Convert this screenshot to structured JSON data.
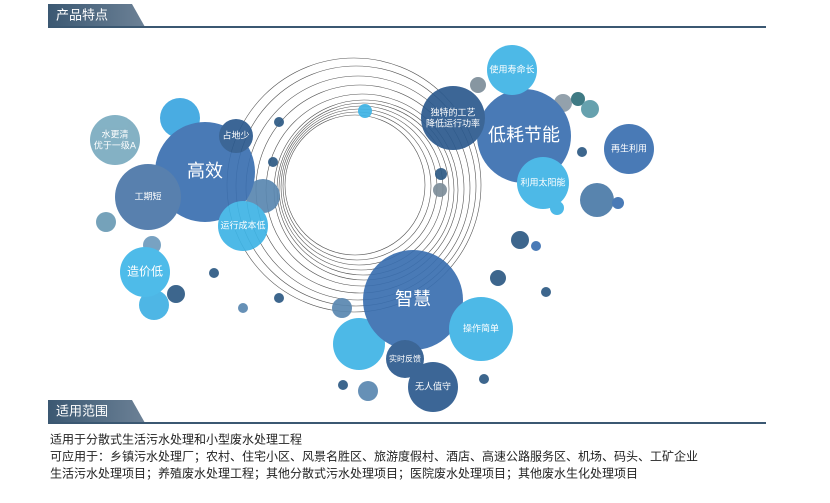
{
  "sections": [
    {
      "title": "产品特点"
    },
    {
      "title": "适用范围"
    }
  ],
  "groups": [
    {
      "main": "高效",
      "items": [
        "占地少",
        "水更清\n优于一级A",
        "工期短",
        "运行成本低",
        "造价低"
      ]
    },
    {
      "main": "低耗节能",
      "items": [
        "独特的工艺\n降低运行功率",
        "使用寿命长",
        "再生利用",
        "利用太阳能"
      ]
    },
    {
      "main": "智慧",
      "items": [
        "操作简单",
        "实时反馈",
        "无人值守"
      ]
    }
  ],
  "scope": {
    "lines": [
      "适用于分散式生活污水处理和小型废水处理工程",
      "可应用于：乡镇污水处理厂；农村、住宅小区、风景名胜区、旅游度假村、酒店、高速公路服务区、机场、码头、工矿企业",
      "生活污水处理项目；养殖废水处理工程；其他分散式污水处理项目；医院废水处理项目；其他废水生化处理项目"
    ]
  }
}
